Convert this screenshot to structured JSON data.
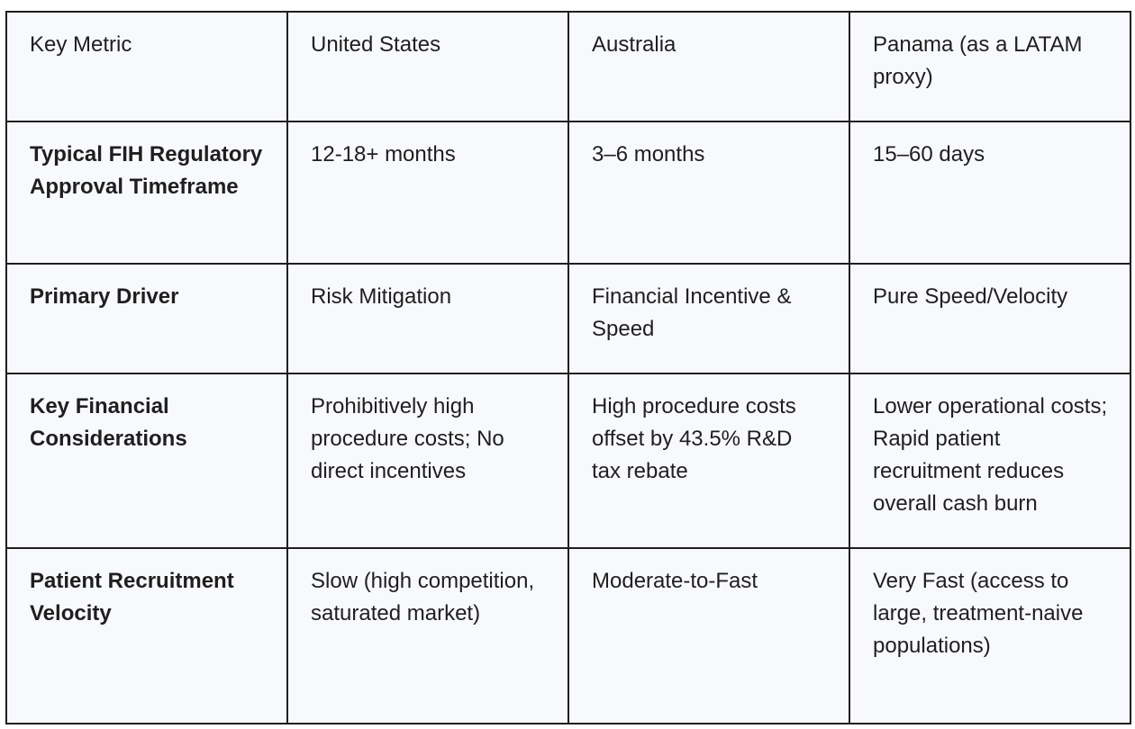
{
  "table": {
    "headers": [
      "Key Metric",
      "United States",
      "Australia",
      "Panama (as a LATAM proxy)"
    ],
    "rows": [
      {
        "metric": "Typical FIH Regulatory Approval Timeframe",
        "cells": [
          "12-18+ months",
          "3–6 months",
          "15–60 days"
        ]
      },
      {
        "metric": "Primary Driver",
        "cells": [
          "Risk Mitigation",
          "Financial Incentive & Speed",
          "Pure Speed/Velocity"
        ]
      },
      {
        "metric": "Key Financial Considerations",
        "cells": [
          "Prohibitively high procedure costs; No direct incentives",
          "High procedure costs offset by 43.5% R&D tax rebate",
          "Lower operational costs; Rapid patient recruitment reduces overall cash burn"
        ]
      },
      {
        "metric": "Patient Recruitment Velocity",
        "cells": [
          "Slow (high competition, saturated market)",
          "Moderate-to-Fast",
          "Very Fast (access to large, treatment-naive populations)"
        ]
      }
    ]
  }
}
